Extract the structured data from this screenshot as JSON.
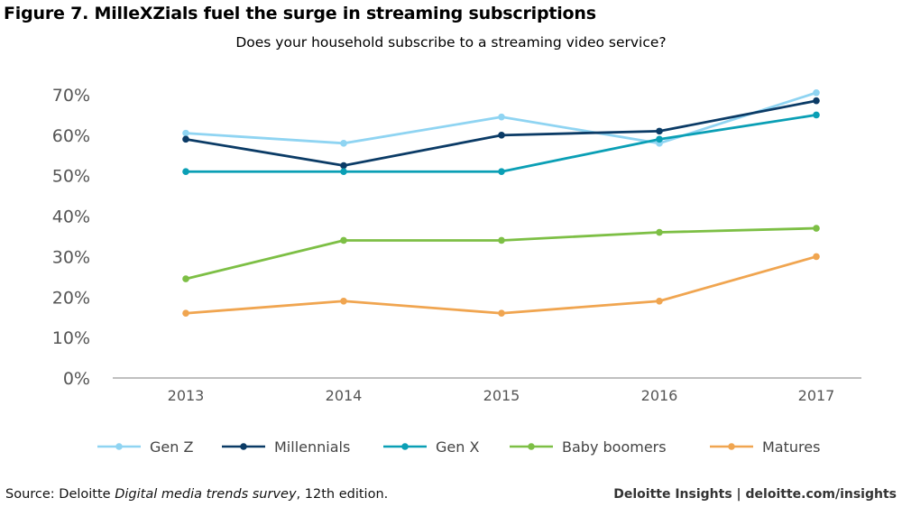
{
  "figure_title": "Figure 7. MilleXZials fuel the surge in streaming subscriptions",
  "source": {
    "prefix": "Source: Deloitte ",
    "italic": "Digital media trends survey",
    "suffix": ", 12th edition."
  },
  "brand": "Deloitte Insights | deloitte.com/insights",
  "chart_data": {
    "type": "line",
    "title": "Does your household subscribe to a streaming video service?",
    "xlabel": "",
    "ylabel": "",
    "categories": [
      "2013",
      "2014",
      "2015",
      "2016",
      "2017"
    ],
    "ylim": [
      0,
      70
    ],
    "yticks": [
      0,
      10,
      20,
      30,
      40,
      50,
      60,
      70
    ],
    "ytick_labels": [
      "0%",
      "10%",
      "20%",
      "30%",
      "40%",
      "50%",
      "60%",
      "70%"
    ],
    "grid": false,
    "legend_position": "bottom",
    "series": [
      {
        "name": "Gen Z",
        "color": "#8fd4f2",
        "values": [
          60.5,
          58,
          64.5,
          58,
          70.5
        ]
      },
      {
        "name": "Millennials",
        "color": "#0b3b66",
        "values": [
          59,
          52.5,
          60,
          61,
          68.5
        ]
      },
      {
        "name": "Gen X",
        "color": "#0a9fb5",
        "values": [
          51,
          51,
          51,
          59,
          65
        ]
      },
      {
        "name": "Baby boomers",
        "color": "#7dbf45",
        "values": [
          24.5,
          34,
          34,
          36,
          37
        ]
      },
      {
        "name": "Matures",
        "color": "#f0a550",
        "values": [
          16,
          19,
          16,
          19,
          30
        ]
      }
    ]
  }
}
